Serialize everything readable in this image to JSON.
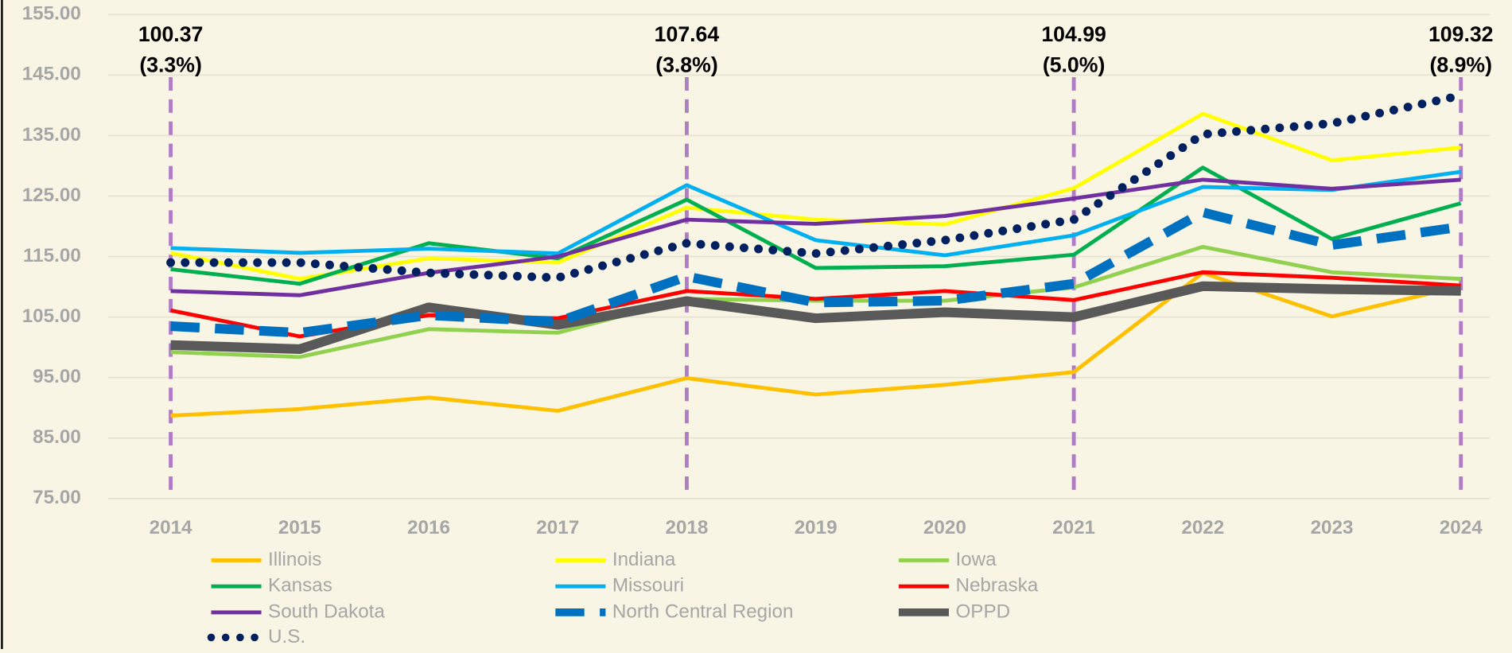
{
  "chart_data": {
    "type": "line",
    "categories": [
      "2014",
      "2015",
      "2016",
      "2017",
      "2018",
      "2019",
      "2020",
      "2021",
      "2022",
      "2023",
      "2024"
    ],
    "ylim": [
      75,
      155
    ],
    "yticks": [
      {
        "value": 75,
        "label": "75.00"
      },
      {
        "value": 85,
        "label": "85.00"
      },
      {
        "value": 95,
        "label": "95.00"
      },
      {
        "value": 105,
        "label": "105.00"
      },
      {
        "value": 115,
        "label": "115.00"
      },
      {
        "value": 125,
        "label": "125.00"
      },
      {
        "value": 135,
        "label": "135.00"
      },
      {
        "value": 145,
        "label": "145.00"
      },
      {
        "value": 155,
        "label": "155.00"
      }
    ],
    "grid": true,
    "series": [
      {
        "name": "Illinois",
        "color": "#ffc000",
        "line_style": "solid",
        "width": 4,
        "values": [
          88.7,
          89.8,
          91.7,
          89.5,
          94.9,
          92.2,
          93.8,
          95.9,
          112.3,
          105.1,
          110.1
        ]
      },
      {
        "name": "Indiana",
        "color": "#ffff00",
        "line_style": "solid",
        "width": 4,
        "values": [
          115.6,
          111.3,
          114.7,
          114.0,
          123.1,
          121.1,
          120.3,
          126.3,
          138.6,
          130.9,
          133.0
        ]
      },
      {
        "name": "Iowa",
        "color": "#92d050",
        "line_style": "solid",
        "width": 4,
        "values": [
          99.2,
          98.4,
          103.0,
          102.4,
          108.0,
          107.7,
          107.7,
          109.9,
          116.6,
          112.4,
          111.3
        ]
      },
      {
        "name": "Kansas",
        "color": "#00b050",
        "line_style": "solid",
        "width": 4,
        "values": [
          112.9,
          110.5,
          117.2,
          114.7,
          124.4,
          113.1,
          113.4,
          115.3,
          129.7,
          117.9,
          123.8
        ]
      },
      {
        "name": "Missouri",
        "color": "#00b0f0",
        "line_style": "solid",
        "width": 4,
        "values": [
          116.4,
          115.6,
          116.3,
          115.5,
          126.8,
          117.7,
          115.2,
          118.5,
          126.5,
          126.0,
          129.0
        ]
      },
      {
        "name": "Nebraska",
        "color": "#ff0000",
        "line_style": "solid",
        "width": 4,
        "values": [
          106.1,
          101.8,
          105.3,
          104.8,
          109.3,
          108.0,
          109.3,
          107.8,
          112.4,
          111.5,
          110.2
        ]
      },
      {
        "name": "South Dakota",
        "color": "#7030a0",
        "line_style": "solid",
        "width": 4,
        "values": [
          109.3,
          108.6,
          112.3,
          115.0,
          121.1,
          120.4,
          121.7,
          124.6,
          127.7,
          126.2,
          127.7
        ]
      },
      {
        "name": "North Central Region",
        "color": "#0070c0",
        "line_style": "dashed",
        "width": 10,
        "values": [
          103.5,
          102.4,
          105.3,
          104.2,
          111.7,
          107.4,
          107.7,
          110.5,
          122.3,
          116.9,
          119.9
        ]
      },
      {
        "name": "OPPD",
        "color": "#595959",
        "line_style": "solid",
        "width": 10,
        "values": [
          100.37,
          99.7,
          106.6,
          103.7,
          107.64,
          104.8,
          105.8,
          104.99,
          110.1,
          109.6,
          109.32
        ]
      },
      {
        "name": "U.S.",
        "color": "#002060",
        "line_style": "dotted",
        "width": 9,
        "values": [
          114.0,
          114.0,
          112.3,
          111.5,
          117.2,
          115.5,
          117.7,
          121.1,
          135.2,
          137.0,
          141.6
        ]
      }
    ],
    "annotations": [
      {
        "category": "2014",
        "label": "100.37",
        "note": "(3.3%)"
      },
      {
        "category": "2018",
        "label": "107.64",
        "note": "(3.8%)"
      },
      {
        "category": "2021",
        "label": "104.99",
        "note": "(5.0%)"
      },
      {
        "category": "2024",
        "label": "109.32",
        "note": "(8.9%)"
      }
    ]
  }
}
